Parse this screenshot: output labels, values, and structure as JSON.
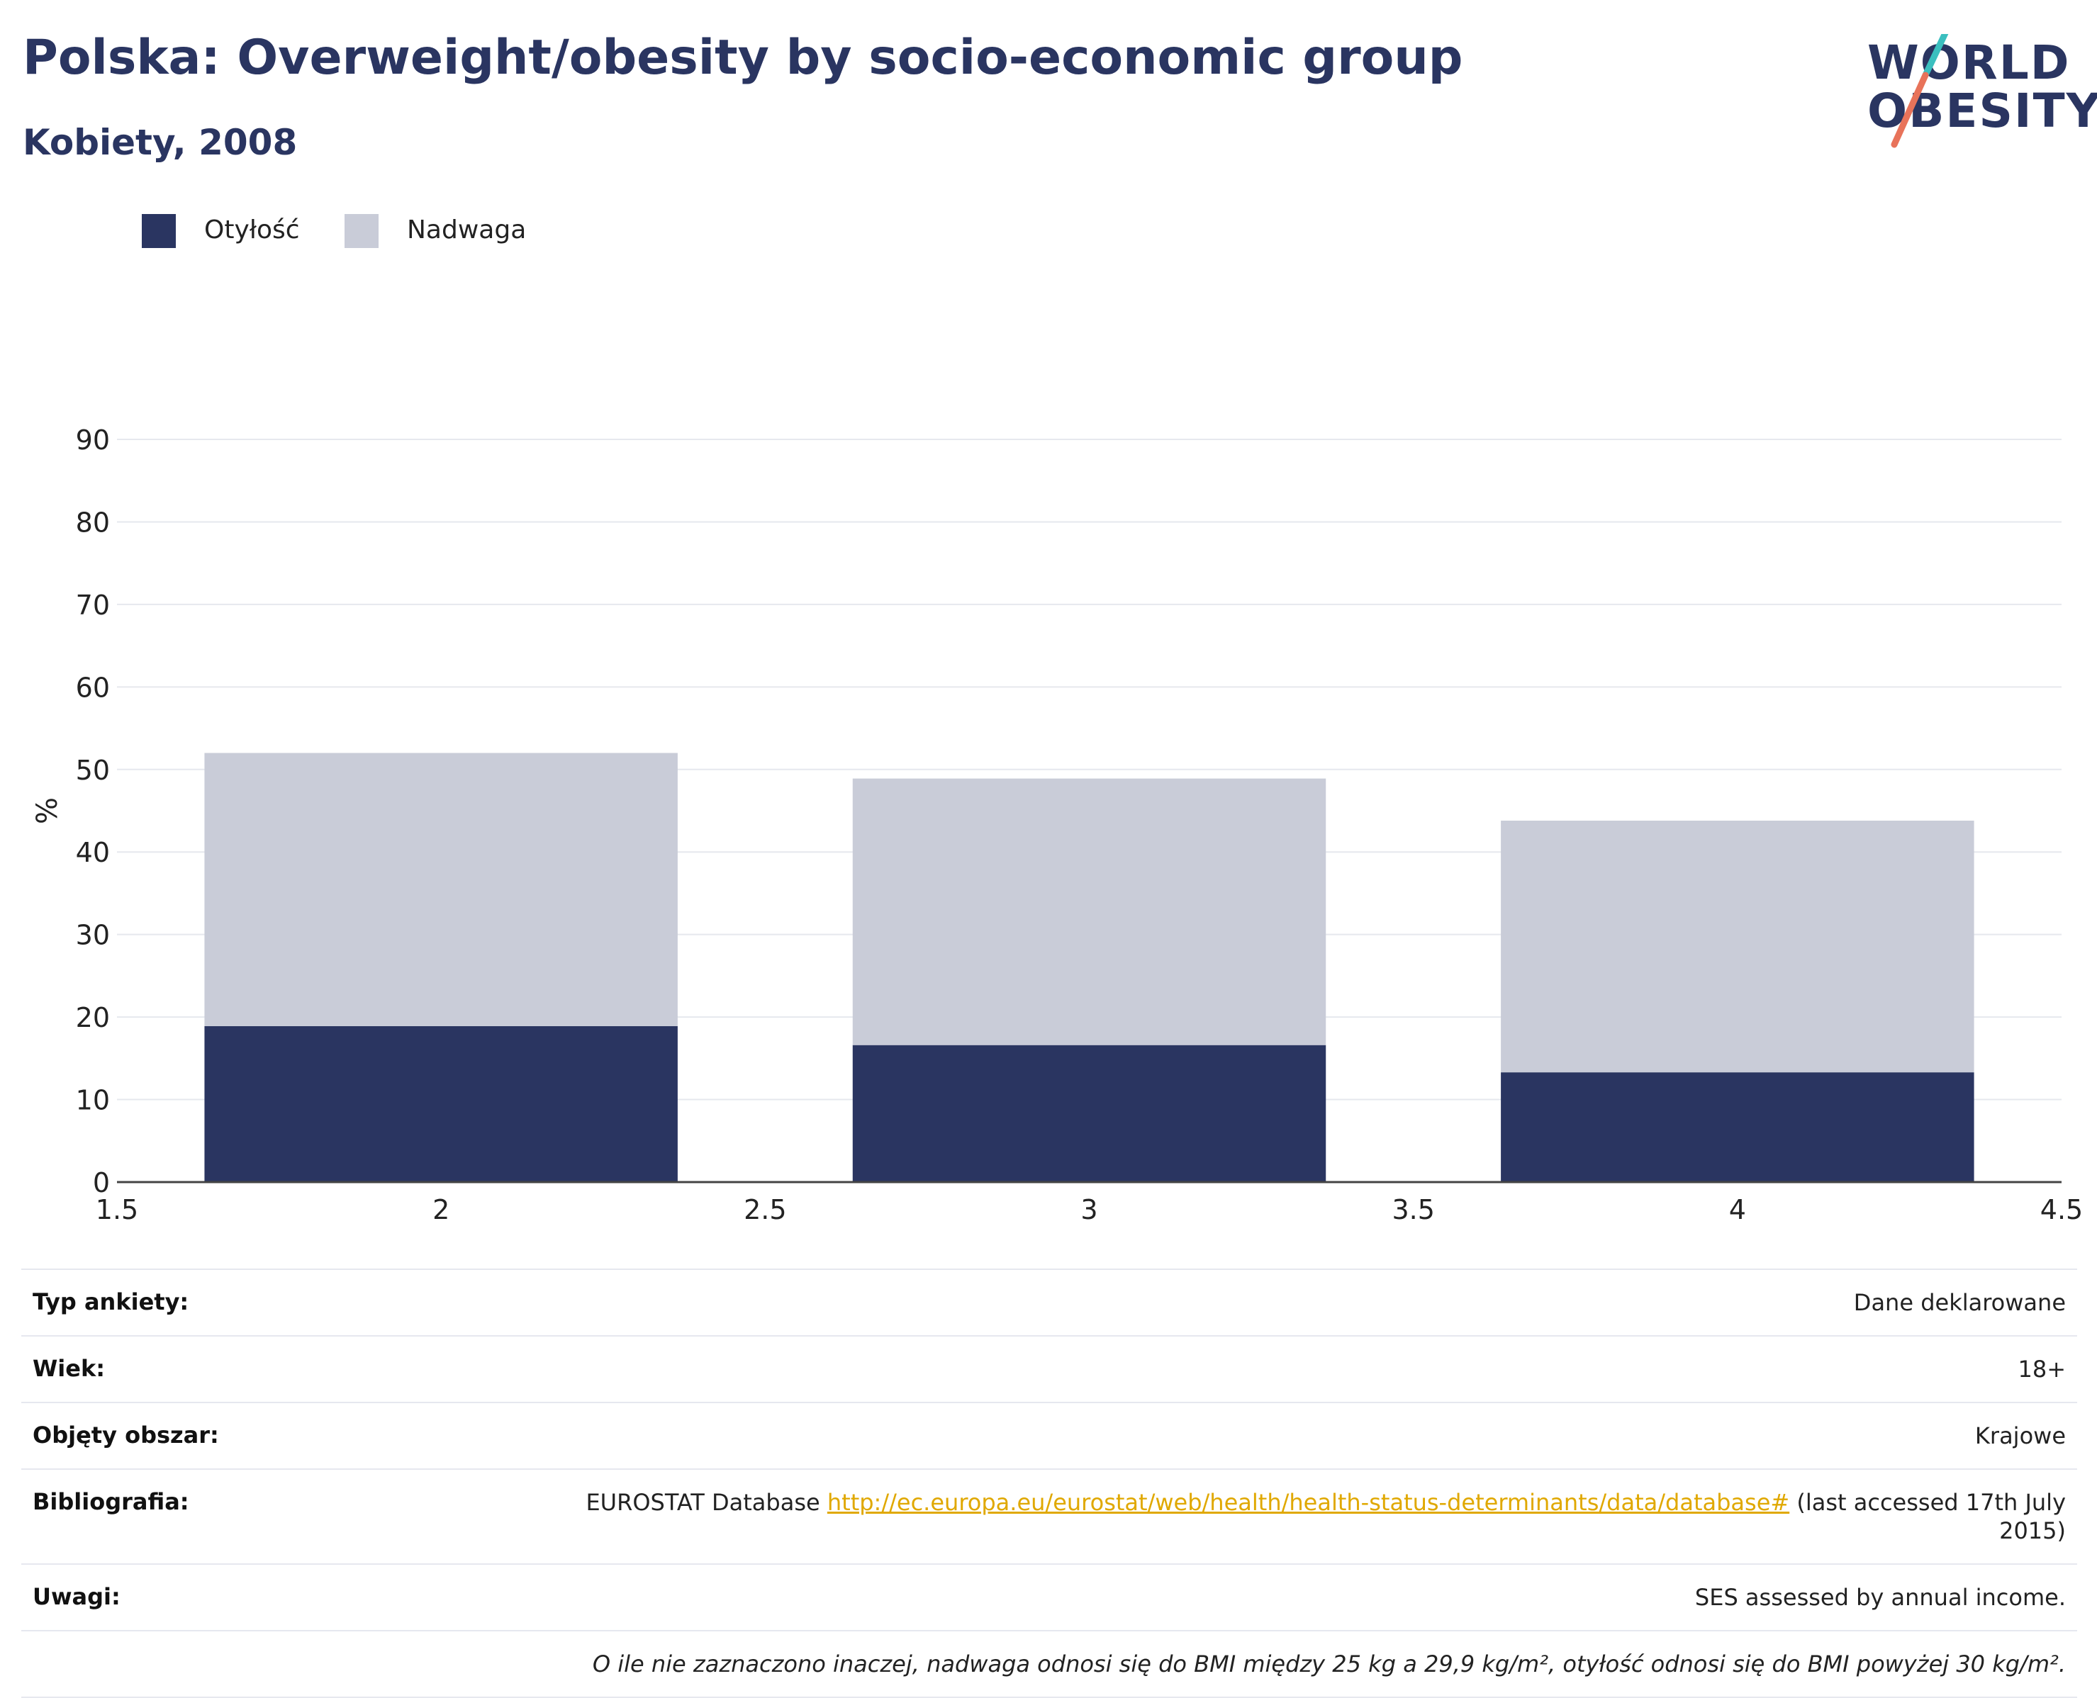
{
  "header": {
    "title": "Polska: Overweight/obesity by socio-economic group",
    "subtitle": "Kobiety, 2008",
    "logo_line1": "WORLD",
    "logo_line2": "OBESITY"
  },
  "colors": {
    "obesity": "#2a3561",
    "overweight": "#c9ccd8",
    "title": "#2a3561",
    "logo_slash_teal": "#3bbfbf",
    "logo_slash_coral": "#e8735a",
    "link": "#e0a800"
  },
  "legend": [
    {
      "label": "Otyłość",
      "color": "#2a3561"
    },
    {
      "label": "Nadwaga",
      "color": "#c9ccd8"
    }
  ],
  "chart_data": {
    "type": "bar",
    "stacked": true,
    "x": [
      2,
      3,
      4
    ],
    "series": [
      {
        "name": "Otyłość",
        "values": [
          18.9,
          16.6,
          13.3
        ]
      },
      {
        "name": "Nadwaga",
        "values": [
          33.1,
          32.3,
          30.5
        ]
      }
    ],
    "xlim": [
      1.5,
      4.5
    ],
    "ylim": [
      0,
      90
    ],
    "xticks": [
      "1.5",
      "2",
      "2.5",
      "3",
      "3.5",
      "4",
      "4.5"
    ],
    "yticks": [
      "0",
      "10",
      "20",
      "30",
      "40",
      "50",
      "60",
      "70",
      "80",
      "90"
    ],
    "ylabel": "%",
    "grid": true,
    "legend_position": "top-left"
  },
  "info": {
    "rows": [
      {
        "label": "Typ ankiety:",
        "value": "Dane deklarowane"
      },
      {
        "label": "Wiek:",
        "value": "18+"
      },
      {
        "label": "Objęty obszar:",
        "value": "Krajowe"
      }
    ],
    "bibliography": {
      "label": "Bibliografia:",
      "prefix": "EUROSTAT Database ",
      "link": "http://ec.europa.eu/eurostat/web/health/health-status-determinants/data/database#",
      "suffix": " (last accessed 17th July 2015)"
    },
    "notes": {
      "label": "Uwagi:",
      "value": "SES assessed by annual income."
    },
    "footnote": "O ile nie zaznaczono inaczej, nadwaga odnosi się do BMI między 25 kg a 29,9 kg/m², otyłość odnosi się do BMI powyżej 30 kg/m²."
  }
}
